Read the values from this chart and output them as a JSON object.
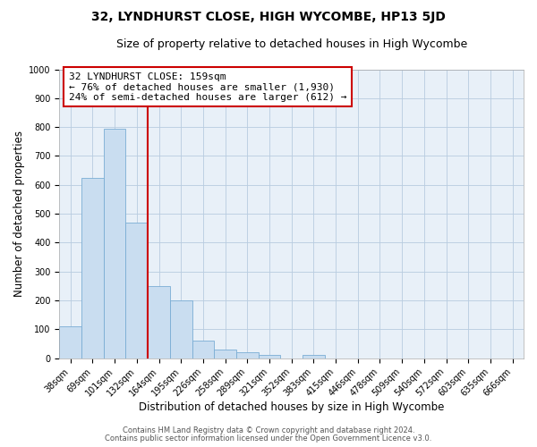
{
  "title": "32, LYNDHURST CLOSE, HIGH WYCOMBE, HP13 5JD",
  "subtitle": "Size of property relative to detached houses in High Wycombe",
  "xlabel": "Distribution of detached houses by size in High Wycombe",
  "ylabel": "Number of detached properties",
  "bar_labels": [
    "38sqm",
    "69sqm",
    "101sqm",
    "132sqm",
    "164sqm",
    "195sqm",
    "226sqm",
    "258sqm",
    "289sqm",
    "321sqm",
    "352sqm",
    "383sqm",
    "415sqm",
    "446sqm",
    "478sqm",
    "509sqm",
    "540sqm",
    "572sqm",
    "603sqm",
    "635sqm",
    "666sqm"
  ],
  "bar_values": [
    110,
    625,
    795,
    470,
    250,
    200,
    62,
    30,
    20,
    10,
    0,
    10,
    0,
    0,
    0,
    0,
    0,
    0,
    0,
    0,
    0
  ],
  "bar_color": "#c9ddf0",
  "bar_edgecolor": "#7aadd4",
  "vline_color": "#cc0000",
  "annotation_text": "32 LYNDHURST CLOSE: 159sqm\n← 76% of detached houses are smaller (1,930)\n24% of semi-detached houses are larger (612) →",
  "annotation_box_color": "#ffffff",
  "annotation_box_edgecolor": "#cc0000",
  "ylim": [
    0,
    1000
  ],
  "yticks": [
    0,
    100,
    200,
    300,
    400,
    500,
    600,
    700,
    800,
    900,
    1000
  ],
  "footer_line1": "Contains HM Land Registry data © Crown copyright and database right 2024.",
  "footer_line2": "Contains public sector information licensed under the Open Government Licence v3.0.",
  "background_color": "#ffffff",
  "plot_bg_color": "#e8f0f8",
  "grid_color": "#b8cce0",
  "title_fontsize": 10,
  "subtitle_fontsize": 9,
  "axis_label_fontsize": 8.5,
  "tick_fontsize": 7,
  "annotation_fontsize": 8,
  "footer_fontsize": 6
}
